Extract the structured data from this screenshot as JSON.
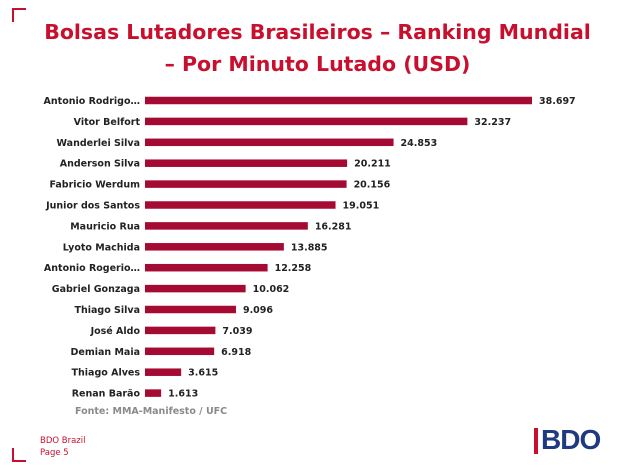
{
  "title": "Bolsas Lutadores Brasileiros – Ranking Mundial – Por Minuto Lutado (USD)",
  "source": "Fonte: MMA-Manifesto / UFC",
  "footer": {
    "company": "BDO Brazil",
    "page": "Page 5"
  },
  "logo": {
    "text": "BDO"
  },
  "colors": {
    "accent": "#c8102e",
    "bar": "#a50a33",
    "logo_blue": "#1f3a80"
  },
  "chart_data": {
    "type": "bar",
    "orientation": "horizontal",
    "categories": [
      "Antonio Rodrigo…",
      "Vitor Belfort",
      "Wanderlei Silva",
      "Anderson Silva",
      "Fabricio Werdum",
      "Junior dos Santos",
      "Mauricio Rua",
      "Lyoto Machida",
      "Antonio Rogerio…",
      "Gabriel Gonzaga",
      "Thiago Silva",
      "José Aldo",
      "Demian Maia",
      "Thiago Alves",
      "Renan Barão"
    ],
    "values": [
      38697,
      32237,
      24853,
      20211,
      20156,
      19051,
      16281,
      13885,
      12258,
      10062,
      9096,
      7039,
      6918,
      3615,
      1613
    ],
    "value_labels": [
      "38.697",
      "32.237",
      "24.853",
      "20.211",
      "20.156",
      "19.051",
      "16.281",
      "13.885",
      "12.258",
      "10.062",
      "9.096",
      "7.039",
      "6.918",
      "3.615",
      "1.613"
    ],
    "title": "Bolsas Lutadores Brasileiros – Ranking Mundial – Por Minuto Lutado (USD)",
    "xlabel": "",
    "ylabel": "",
    "xlim": [
      0,
      38697
    ],
    "grid": false,
    "legend": "none"
  }
}
